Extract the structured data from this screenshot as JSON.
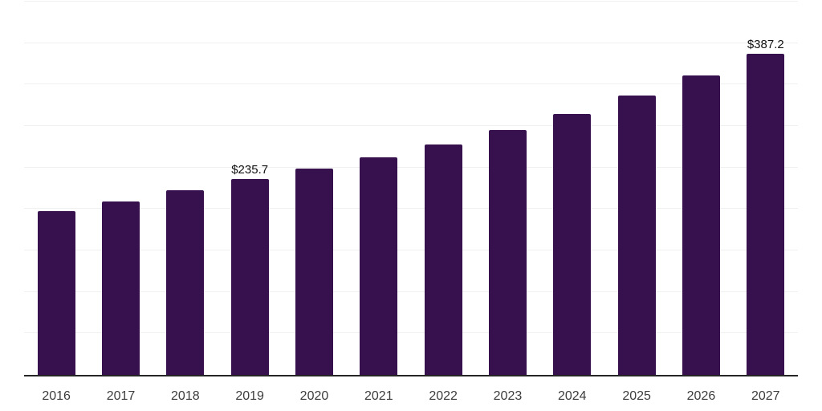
{
  "chart_data": {
    "type": "bar",
    "title": "",
    "xlabel": "",
    "ylabel": "",
    "categories": [
      "2016",
      "2017",
      "2018",
      "2019",
      "2020",
      "2021",
      "2022",
      "2023",
      "2024",
      "2025",
      "2026",
      "2027"
    ],
    "values": [
      197.5,
      208.7,
      222.7,
      235.7,
      249.0,
      262.7,
      277.8,
      295.6,
      314.5,
      337.2,
      361.2,
      387.2
    ],
    "point_labels": [
      "",
      "",
      "",
      "$235.7",
      "",
      "",
      "",
      "",
      "",
      "",
      "",
      "$387.2"
    ],
    "ylim": [
      0,
      450
    ],
    "gridline_step": 50,
    "grid": "horizontal",
    "legend": "none",
    "y_tick_labels_visible": false,
    "colors": {
      "bar": "#36114E",
      "gridline": "#f0f0f0",
      "axis_line": "#262626",
      "tick_label": "#3d3d3d",
      "point_label": "#111111",
      "background": "#ffffff"
    }
  }
}
